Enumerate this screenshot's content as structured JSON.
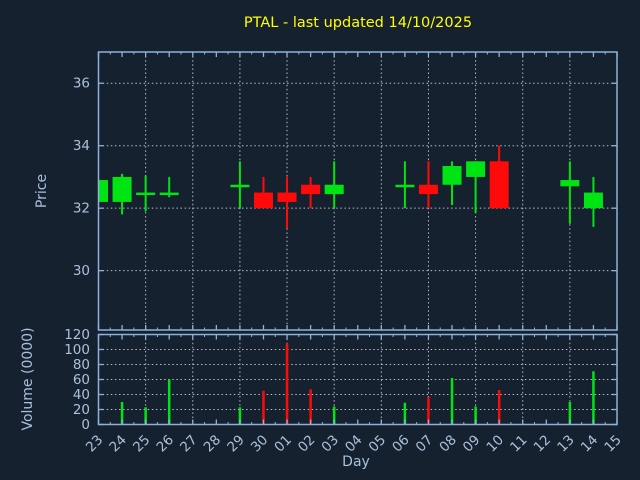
{
  "title": "PTAL - last updated 14/10/2025",
  "colors": {
    "background": "#16212f",
    "title": "#ffff00",
    "axis_text": "#a9c0dc",
    "spine": "#8cb2dc",
    "grid": "#c8ccd4",
    "up": "#00e414",
    "down": "#ff0a0a"
  },
  "chart_data": [
    {
      "type": "candlestick",
      "title": "PTAL - last updated 14/10/2025",
      "xlabel": "Day",
      "ylabel": "Price",
      "x_tick_labels": [
        "23",
        "24",
        "25",
        "26",
        "27",
        "28",
        "29",
        "30",
        "01",
        "02",
        "03",
        "04",
        "05",
        "06",
        "07",
        "08",
        "09",
        "10",
        "11",
        "12",
        "13",
        "14",
        "15"
      ],
      "y_ticks": [
        30,
        32,
        34,
        36
      ],
      "ylim": [
        28.1,
        37.0
      ],
      "grid": true,
      "legend": "none",
      "candles": [
        {
          "day": "23",
          "open": 32.2,
          "high": 32.9,
          "low": 32.2,
          "close": 32.9
        },
        {
          "day": "24",
          "open": 32.2,
          "high": 33.1,
          "low": 31.8,
          "close": 33.0
        },
        {
          "day": "25",
          "open": 32.5,
          "high": 33.05,
          "low": 31.9,
          "close": 32.5
        },
        {
          "day": "26",
          "open": 32.5,
          "high": 33.0,
          "low": 32.35,
          "close": 32.5
        },
        {
          "day": "29",
          "open": 32.75,
          "high": 33.5,
          "low": 32.0,
          "close": 32.75
        },
        {
          "day": "30",
          "open": 32.5,
          "high": 33.0,
          "low": 32.0,
          "close": 32.0
        },
        {
          "day": "01",
          "open": 32.5,
          "high": 33.0,
          "low": 31.35,
          "close": 32.2
        },
        {
          "day": "02",
          "open": 32.75,
          "high": 33.0,
          "low": 32.0,
          "close": 32.45
        },
        {
          "day": "03",
          "open": 32.45,
          "high": 33.5,
          "low": 32.0,
          "close": 32.75
        },
        {
          "day": "06",
          "open": 32.75,
          "high": 33.5,
          "low": 32.0,
          "close": 32.75
        },
        {
          "day": "07",
          "open": 32.75,
          "high": 33.5,
          "low": 32.0,
          "close": 32.45
        },
        {
          "day": "08",
          "open": 32.75,
          "high": 33.5,
          "low": 32.1,
          "close": 33.35
        },
        {
          "day": "09",
          "open": 33.0,
          "high": 33.5,
          "low": 31.85,
          "close": 33.5
        },
        {
          "day": "10",
          "open": 33.5,
          "high": 34.0,
          "low": 32.0,
          "close": 32.0
        },
        {
          "day": "13",
          "open": 32.7,
          "high": 33.5,
          "low": 31.5,
          "close": 32.9
        },
        {
          "day": "14",
          "open": 32.0,
          "high": 33.0,
          "low": 31.4,
          "close": 32.5
        }
      ]
    },
    {
      "type": "bar",
      "xlabel": "Day",
      "ylabel": "Volume (0000)",
      "y_ticks": [
        0,
        20,
        40,
        60,
        80,
        100,
        120
      ],
      "ylim": [
        0,
        120
      ],
      "grid": true,
      "bars": [
        {
          "day": "24",
          "value": 30,
          "direction": "up"
        },
        {
          "day": "25",
          "value": 23,
          "direction": "up"
        },
        {
          "day": "26",
          "value": 60,
          "direction": "up"
        },
        {
          "day": "29",
          "value": 23,
          "direction": "up"
        },
        {
          "day": "30",
          "value": 45,
          "direction": "down"
        },
        {
          "day": "01",
          "value": 108,
          "direction": "down"
        },
        {
          "day": "02",
          "value": 47,
          "direction": "down"
        },
        {
          "day": "03",
          "value": 24,
          "direction": "up"
        },
        {
          "day": "06",
          "value": 29,
          "direction": "up"
        },
        {
          "day": "07",
          "value": 37,
          "direction": "down"
        },
        {
          "day": "08",
          "value": 62,
          "direction": "up"
        },
        {
          "day": "09",
          "value": 24,
          "direction": "up"
        },
        {
          "day": "10",
          "value": 46,
          "direction": "down"
        },
        {
          "day": "13",
          "value": 30,
          "direction": "up"
        },
        {
          "day": "14",
          "value": 71,
          "direction": "up"
        }
      ]
    }
  ]
}
